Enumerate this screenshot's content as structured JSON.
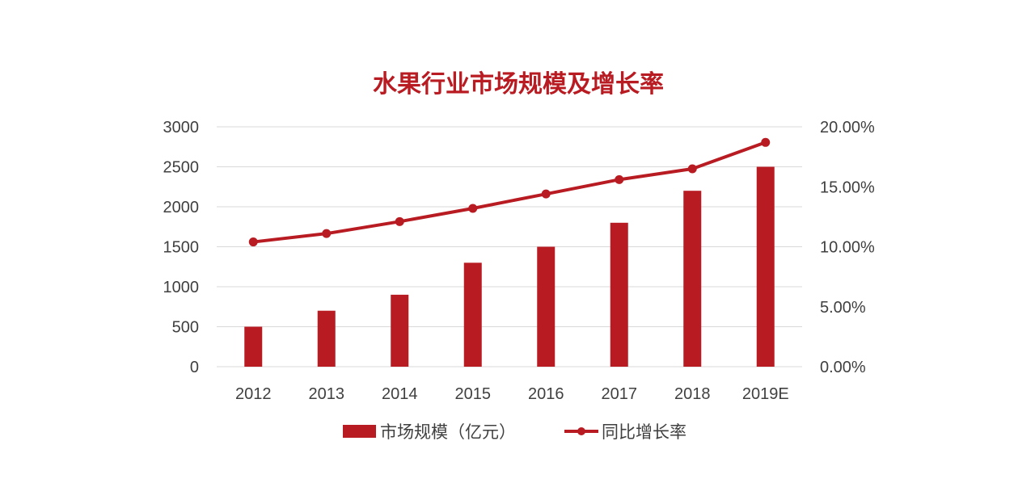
{
  "chart_data": {
    "type": "bar+line",
    "title": "水果行业市场规模及增长率",
    "categories": [
      "2012",
      "2013",
      "2014",
      "2015",
      "2016",
      "2017",
      "2018",
      "2019E"
    ],
    "series": [
      {
        "name": "市场规模（亿元）",
        "type": "bar",
        "axis": "left",
        "values": [
          500,
          700,
          900,
          1300,
          1500,
          1800,
          2200,
          2500
        ]
      },
      {
        "name": "同比增长率",
        "type": "line",
        "axis": "right",
        "values": [
          0.104,
          0.111,
          0.121,
          0.132,
          0.144,
          0.156,
          0.165,
          0.187
        ]
      }
    ],
    "y_left": {
      "min": 0,
      "max": 3000,
      "ticks": [
        0,
        500,
        1000,
        1500,
        2000,
        2500,
        3000
      ],
      "tick_labels": [
        "0",
        "500",
        "1000",
        "1500",
        "2000",
        "2500",
        "3000"
      ]
    },
    "y_right": {
      "min": 0,
      "max": 0.2,
      "ticks": [
        0,
        0.05,
        0.1,
        0.15,
        0.2
      ],
      "tick_labels": [
        "0.00%",
        "5.00%",
        "10.00%",
        "15.00%",
        "20.00%"
      ]
    },
    "grid": true,
    "legend_position": "bottom-center",
    "colors": {
      "accent": "#b81c22",
      "text": "#404040",
      "grid": "#d9d9d9"
    }
  }
}
